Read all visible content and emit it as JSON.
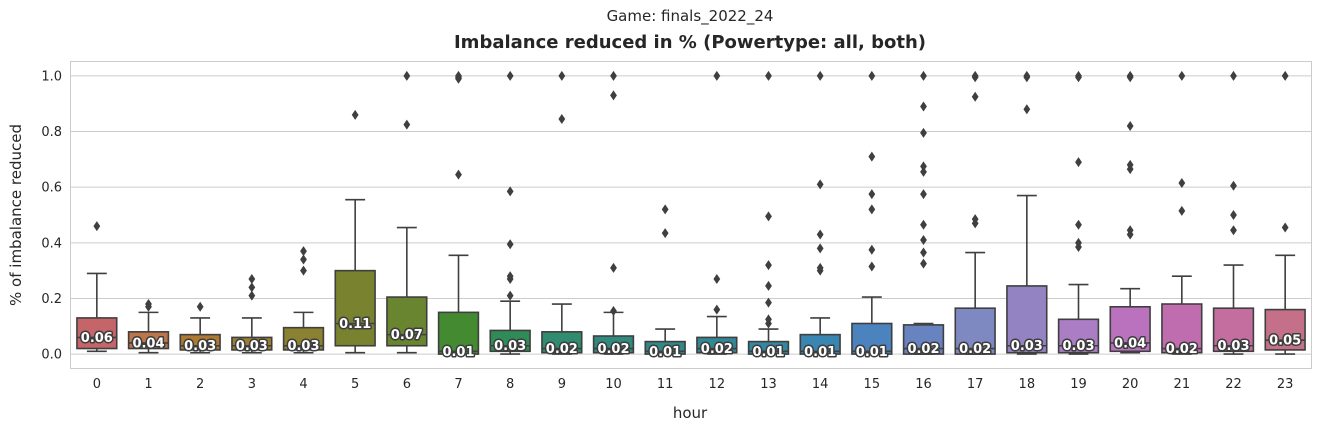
{
  "chart_data": {
    "type": "box",
    "suptitle": "Game: finals_2022_24",
    "title": "Imbalance reduced in % (Powertype: all, both)",
    "xlabel": "hour",
    "ylabel": "% of imbalance reduced",
    "ylim": [
      -0.05,
      1.05
    ],
    "yticks": [
      "0.0",
      "0.2",
      "0.4",
      "0.6",
      "0.8",
      "1.0"
    ],
    "grid": "horizontal",
    "categories": [
      "0",
      "1",
      "2",
      "3",
      "4",
      "5",
      "6",
      "7",
      "8",
      "9",
      "10",
      "11",
      "12",
      "13",
      "14",
      "15",
      "16",
      "17",
      "18",
      "19",
      "20",
      "21",
      "22",
      "23"
    ],
    "colors": [
      "#f07b80",
      "#e88f5a",
      "#d4943c",
      "#c09a3a",
      "#a99f3c",
      "#949e38",
      "#80a23a",
      "#53a83c",
      "#3bab6a",
      "#3aaa87",
      "#3aa898",
      "#3ba7a6",
      "#3ca6b4",
      "#3da6c4",
      "#44a3d8",
      "#5aa0e8",
      "#7da0ea",
      "#9aa7ec",
      "#b4a0ee",
      "#cf99ef",
      "#e38ae8",
      "#ea85d6",
      "#ee86c2",
      "#ee88a6"
    ],
    "boxes": [
      {
        "whislo": 0.01,
        "q1": 0.02,
        "median": 0.06,
        "q3": 0.13,
        "whishi": 0.29,
        "fliers": [
          0.46
        ],
        "label": "0.06"
      },
      {
        "whislo": 0.005,
        "q1": 0.02,
        "median": 0.04,
        "q3": 0.08,
        "whishi": 0.15,
        "fliers": [
          0.17,
          0.18
        ],
        "label": "0.04"
      },
      {
        "whislo": 0.005,
        "q1": 0.015,
        "median": 0.03,
        "q3": 0.07,
        "whishi": 0.13,
        "fliers": [
          0.17
        ],
        "label": "0.03"
      },
      {
        "whislo": 0.005,
        "q1": 0.015,
        "median": 0.03,
        "q3": 0.06,
        "whishi": 0.13,
        "fliers": [
          0.21,
          0.24,
          0.27
        ],
        "label": "0.03"
      },
      {
        "whislo": 0.005,
        "q1": 0.015,
        "median": 0.03,
        "q3": 0.095,
        "whishi": 0.15,
        "fliers": [
          0.3,
          0.34,
          0.37
        ],
        "label": "0.03"
      },
      {
        "whislo": 0.005,
        "q1": 0.03,
        "median": 0.11,
        "q3": 0.3,
        "whishi": 0.555,
        "fliers": [
          0.86
        ],
        "label": "0.11"
      },
      {
        "whislo": 0.005,
        "q1": 0.03,
        "median": 0.07,
        "q3": 0.205,
        "whishi": 0.455,
        "fliers": [
          0.825,
          1.0
        ],
        "label": "0.07"
      },
      {
        "whislo": 0.0,
        "q1": 0.0,
        "median": 0.01,
        "q3": 0.15,
        "whishi": 0.355,
        "fliers": [
          0.645,
          0.99,
          0.995,
          1.0
        ],
        "label": "0.01"
      },
      {
        "whislo": 0.0,
        "q1": 0.01,
        "median": 0.03,
        "q3": 0.085,
        "whishi": 0.19,
        "fliers": [
          0.21,
          0.27,
          0.28,
          0.395,
          0.585,
          1.0
        ],
        "label": "0.03"
      },
      {
        "whislo": 0.0,
        "q1": 0.005,
        "median": 0.02,
        "q3": 0.08,
        "whishi": 0.18,
        "fliers": [
          0.845,
          1.0
        ],
        "label": "0.02"
      },
      {
        "whislo": 0.0,
        "q1": 0.005,
        "median": 0.02,
        "q3": 0.065,
        "whishi": 0.15,
        "fliers": [
          0.155,
          0.31,
          0.93,
          1.0
        ],
        "label": "0.02"
      },
      {
        "whislo": 0.0,
        "q1": 0.0,
        "median": 0.01,
        "q3": 0.045,
        "whishi": 0.09,
        "fliers": [
          0.435,
          0.52
        ],
        "label": "0.01"
      },
      {
        "whislo": 0.0,
        "q1": 0.005,
        "median": 0.02,
        "q3": 0.06,
        "whishi": 0.135,
        "fliers": [
          0.16,
          0.27,
          1.0
        ],
        "label": "0.02"
      },
      {
        "whislo": 0.0,
        "q1": 0.0,
        "median": 0.01,
        "q3": 0.045,
        "whishi": 0.09,
        "fliers": [
          0.11,
          0.125,
          0.185,
          0.245,
          0.32,
          0.495,
          1.0
        ],
        "label": "0.01"
      },
      {
        "whislo": 0.0,
        "q1": 0.0,
        "median": 0.01,
        "q3": 0.07,
        "whishi": 0.13,
        "fliers": [
          0.3,
          0.31,
          0.38,
          0.43,
          0.61,
          1.0
        ],
        "label": "0.01"
      },
      {
        "whislo": 0.0,
        "q1": 0.0,
        "median": 0.01,
        "q3": 0.11,
        "whishi": 0.205,
        "fliers": [
          0.315,
          0.375,
          0.52,
          0.575,
          0.71,
          1.0
        ],
        "label": "0.01"
      },
      {
        "whislo": 0.0,
        "q1": 0.0,
        "median": 0.02,
        "q3": 0.105,
        "whishi": 0.11,
        "fliers": [
          0.325,
          0.365,
          0.41,
          0.465,
          0.575,
          0.655,
          0.675,
          0.795,
          0.89,
          1.0
        ],
        "label": "0.02"
      },
      {
        "whislo": 0.0,
        "q1": 0.0,
        "median": 0.02,
        "q3": 0.165,
        "whishi": 0.365,
        "fliers": [
          0.47,
          0.485,
          0.925,
          0.995,
          1.0
        ],
        "label": "0.02"
      },
      {
        "whislo": 0.0,
        "q1": 0.005,
        "median": 0.03,
        "q3": 0.245,
        "whishi": 0.57,
        "fliers": [
          0.88,
          0.995,
          1.0
        ],
        "label": "0.03"
      },
      {
        "whislo": 0.0,
        "q1": 0.005,
        "median": 0.03,
        "q3": 0.125,
        "whishi": 0.25,
        "fliers": [
          0.385,
          0.4,
          0.465,
          0.69,
          0.995,
          1.0
        ],
        "label": "0.03"
      },
      {
        "whislo": 0.005,
        "q1": 0.01,
        "median": 0.04,
        "q3": 0.17,
        "whishi": 0.235,
        "fliers": [
          0.43,
          0.445,
          0.665,
          0.68,
          0.82,
          0.995,
          1.0
        ],
        "label": "0.04"
      },
      {
        "whislo": 0.0,
        "q1": 0.005,
        "median": 0.02,
        "q3": 0.18,
        "whishi": 0.28,
        "fliers": [
          0.515,
          0.615,
          1.0
        ],
        "label": "0.02"
      },
      {
        "whislo": 0.0,
        "q1": 0.01,
        "median": 0.03,
        "q3": 0.165,
        "whishi": 0.32,
        "fliers": [
          0.445,
          0.5,
          0.605,
          1.0
        ],
        "label": "0.03"
      },
      {
        "whislo": 0.0,
        "q1": 0.015,
        "median": 0.05,
        "q3": 0.16,
        "whishi": 0.355,
        "fliers": [
          0.455,
          1.0
        ],
        "label": "0.05"
      }
    ]
  }
}
